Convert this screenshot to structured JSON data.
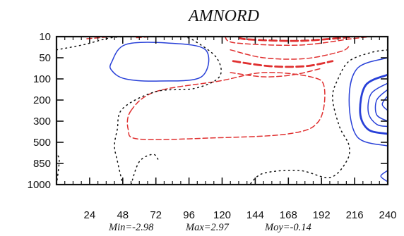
{
  "chart_data": {
    "type": "contour",
    "title": "AMNORD",
    "xlabel": "",
    "ylabel": "",
    "x_ticks": [
      "24",
      "48",
      "72",
      "96",
      "120",
      "144",
      "168",
      "192",
      "216",
      "240"
    ],
    "y_ticks": [
      "10",
      "50",
      "100",
      "200",
      "300",
      "500",
      "850",
      "1000"
    ],
    "xlim": [
      0,
      240
    ],
    "y_levels": [
      10,
      50,
      100,
      200,
      300,
      500,
      850,
      1000
    ],
    "y_axis_inverted": true,
    "stats": {
      "min_label": "Min=-2.98",
      "max_label": "Max=2.97",
      "mean_label": "Moy=-0.14",
      "min": -2.98,
      "max": 2.97,
      "mean": -0.14
    },
    "line_styles": {
      "positive": {
        "color": "#e03030",
        "dash": "dashed"
      },
      "negative": {
        "color": "#2840d8",
        "dash": "solid"
      },
      "zero": {
        "color": "#111111",
        "dash": "dotted"
      }
    },
    "contours": [
      {
        "sign": "negative",
        "emphasis": 1,
        "closed": true,
        "pts": [
          [
            40,
            60
          ],
          [
            50,
            25
          ],
          [
            80,
            22
          ],
          [
            108,
            35
          ],
          [
            105,
            95
          ],
          [
            75,
            110
          ],
          [
            50,
            100
          ],
          [
            40,
            80
          ]
        ]
      },
      {
        "sign": "negative",
        "emphasis": 1,
        "closed": false,
        "pts": [
          [
            240,
            50
          ],
          [
            218,
            75
          ],
          [
            212,
            200
          ],
          [
            218,
            450
          ],
          [
            240,
            560
          ]
        ]
      },
      {
        "sign": "negative",
        "emphasis": 2,
        "closed": false,
        "pts": [
          [
            240,
            90
          ],
          [
            224,
            130
          ],
          [
            220,
            260
          ],
          [
            226,
            380
          ],
          [
            240,
            420
          ]
        ]
      },
      {
        "sign": "negative",
        "emphasis": 1,
        "closed": false,
        "pts": [
          [
            240,
            120
          ],
          [
            228,
            170
          ],
          [
            226,
            260
          ],
          [
            232,
            330
          ],
          [
            240,
            350
          ]
        ]
      },
      {
        "sign": "negative",
        "emphasis": 1,
        "closed": false,
        "pts": [
          [
            240,
            150
          ],
          [
            232,
            200
          ],
          [
            232,
            270
          ],
          [
            240,
            300
          ]
        ]
      },
      {
        "sign": "negative",
        "emphasis": 1,
        "closed": false,
        "pts": [
          [
            240,
            180
          ],
          [
            236,
            220
          ],
          [
            240,
            250
          ]
        ]
      },
      {
        "sign": "negative",
        "emphasis": 1,
        "closed": false,
        "pts": [
          [
            240,
            900
          ],
          [
            235,
            940
          ],
          [
            240,
            980
          ]
        ]
      },
      {
        "sign": "positive",
        "emphasis": 1,
        "closed": true,
        "pts": [
          [
            54,
            250
          ],
          [
            72,
            160
          ],
          [
            118,
            110
          ],
          [
            150,
            85
          ],
          [
            184,
            95
          ],
          [
            194,
            140
          ],
          [
            190,
            300
          ],
          [
            168,
            420
          ],
          [
            110,
            460
          ],
          [
            60,
            470
          ],
          [
            52,
            380
          ]
        ]
      },
      {
        "sign": "positive",
        "emphasis": 1,
        "closed": false,
        "pts": [
          [
            122,
            10
          ],
          [
            130,
            22
          ],
          [
            176,
            26
          ],
          [
            214,
            14
          ],
          [
            228,
            10
          ]
        ]
      },
      {
        "sign": "positive",
        "emphasis": 2,
        "closed": false,
        "pts": [
          [
            132,
            10
          ],
          [
            138,
            15
          ],
          [
            176,
            18
          ],
          [
            212,
            11
          ]
        ]
      },
      {
        "sign": "positive",
        "emphasis": 1,
        "closed": false,
        "pts": [
          [
            126,
            35
          ],
          [
            150,
            50
          ],
          [
            180,
            52
          ],
          [
            206,
            38
          ],
          [
            212,
            28
          ]
        ]
      },
      {
        "sign": "positive",
        "emphasis": 2,
        "closed": false,
        "pts": [
          [
            128,
            58
          ],
          [
            155,
            70
          ],
          [
            180,
            70
          ],
          [
            200,
            58
          ]
        ]
      },
      {
        "sign": "positive",
        "emphasis": 1,
        "closed": false,
        "pts": [
          [
            126,
            85
          ],
          [
            150,
            95
          ],
          [
            172,
            90
          ],
          [
            192,
            75
          ]
        ]
      },
      {
        "sign": "positive",
        "emphasis": 1,
        "closed": false,
        "pts": [
          [
            22,
            14
          ],
          [
            40,
            10
          ]
        ]
      },
      {
        "sign": "positive",
        "emphasis": 1,
        "closed": false,
        "pts": [
          [
            58,
            12
          ],
          [
            70,
            10
          ]
        ]
      },
      {
        "sign": "zero",
        "emphasis": 1,
        "closed": false,
        "pts": [
          [
            0,
            35
          ],
          [
            20,
            25
          ],
          [
            40,
            12
          ],
          [
            60,
            10
          ]
        ]
      },
      {
        "sign": "zero",
        "emphasis": 1,
        "closed": false,
        "pts": [
          [
            92,
            10
          ],
          [
            100,
            18
          ],
          [
            116,
            50
          ],
          [
            118,
            95
          ],
          [
            100,
            145
          ],
          [
            72,
            160
          ],
          [
            48,
            240
          ],
          [
            44,
            380
          ],
          [
            42,
            560
          ],
          [
            44,
            800
          ],
          [
            48,
            1000
          ]
        ]
      },
      {
        "sign": "zero",
        "emphasis": 1,
        "closed": false,
        "pts": [
          [
            54,
            1000
          ],
          [
            60,
            820
          ],
          [
            70,
            700
          ],
          [
            74,
            800
          ]
        ]
      },
      {
        "sign": "zero",
        "emphasis": 1,
        "closed": false,
        "pts": [
          [
            240,
            35
          ],
          [
            228,
            40
          ],
          [
            212,
            58
          ],
          [
            204,
            100
          ],
          [
            200,
            190
          ],
          [
            205,
            350
          ],
          [
            212,
            560
          ],
          [
            210,
            820
          ],
          [
            198,
            950
          ],
          [
            176,
            900
          ],
          [
            150,
            920
          ],
          [
            140,
            1000
          ]
        ]
      },
      {
        "sign": "zero",
        "emphasis": 1,
        "closed": false,
        "pts": [
          [
            0,
            1000
          ],
          [
            2,
            800
          ],
          [
            0,
            700
          ]
        ]
      }
    ]
  }
}
